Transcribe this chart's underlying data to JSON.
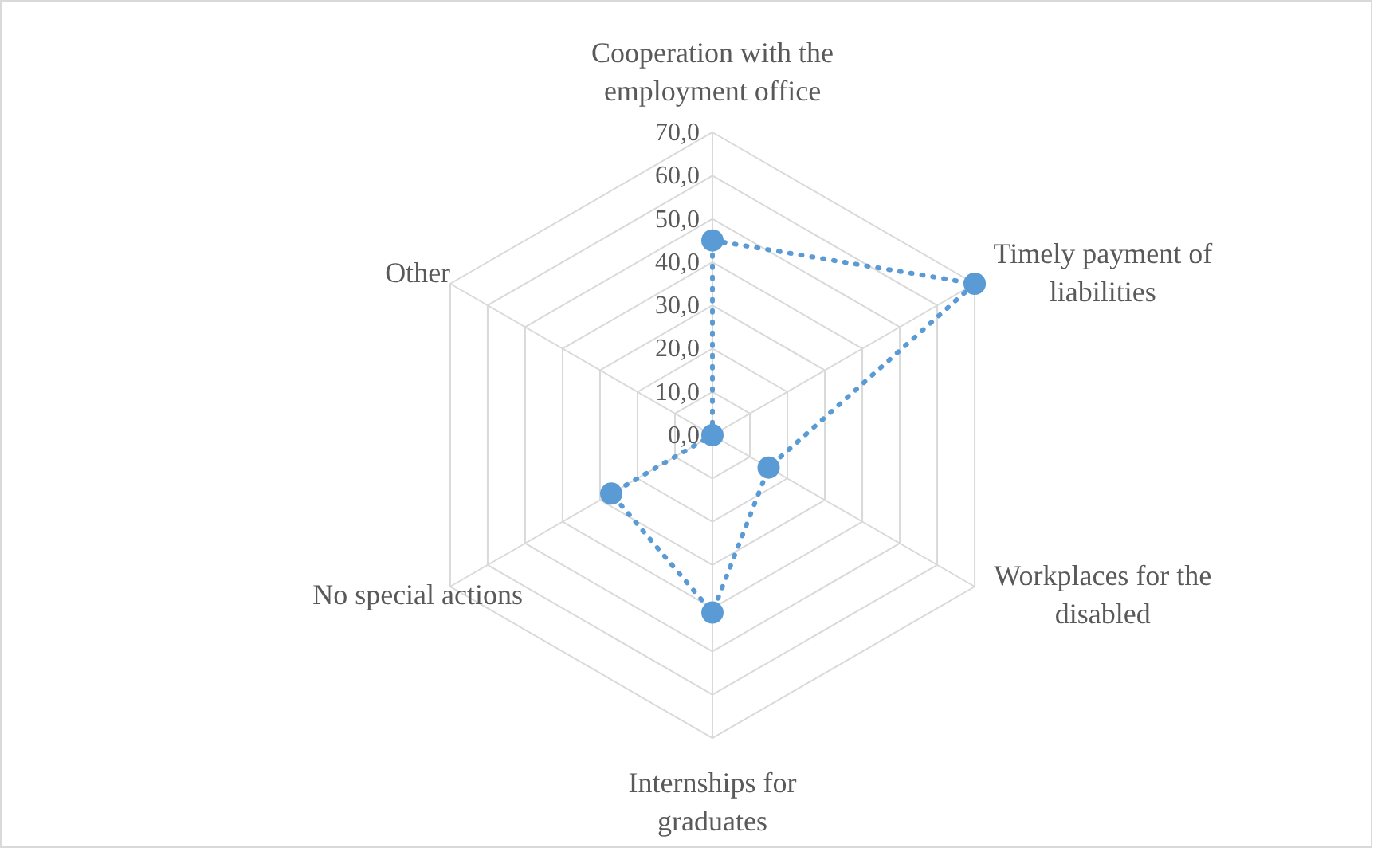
{
  "chart_data": {
    "type": "radar",
    "categories": [
      "Cooperation with the employment office",
      "Timely payment of liabilities",
      "Workplaces for the disabled",
      "Internships for graduates",
      "No special actions",
      "Other"
    ],
    "series": [
      {
        "color": "#5b9bd5",
        "values": [
          45,
          70,
          15,
          41,
          27,
          0
        ]
      }
    ],
    "ylim": [
      0,
      70
    ],
    "yticks": [
      {
        "value": 0,
        "label": "0,0"
      },
      {
        "value": 10,
        "label": "10,0"
      },
      {
        "value": 20,
        "label": "20,0"
      },
      {
        "value": 30,
        "label": "30,0"
      },
      {
        "value": 40,
        "label": "40,0"
      },
      {
        "value": 50,
        "label": "50,0"
      },
      {
        "value": 60,
        "label": "60,0"
      },
      {
        "value": 70,
        "label": "70,0"
      }
    ],
    "grid": true,
    "marker": "circle",
    "line_style": "dotted"
  }
}
